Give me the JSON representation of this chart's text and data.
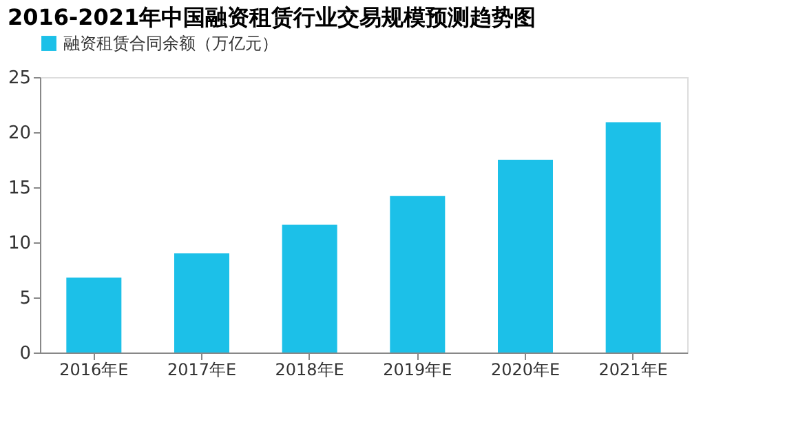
{
  "chart_data": {
    "type": "bar",
    "title": "2016-2021年中国融资租赁行业交易规模预测趋势图",
    "categories": [
      "2016年E",
      "2017年E",
      "2018年E",
      "2019年E",
      "2020年E",
      "2021年E"
    ],
    "series": [
      {
        "name": "融资租赁合同余额（万亿元）",
        "color": "#1cc0e8",
        "values": [
          6.8,
          9.0,
          11.6,
          14.2,
          17.5,
          20.9
        ]
      }
    ],
    "ylim": [
      0,
      25
    ],
    "yticks": [
      0,
      5,
      10,
      15,
      20,
      25
    ],
    "grid": false,
    "legend": "top left"
  }
}
